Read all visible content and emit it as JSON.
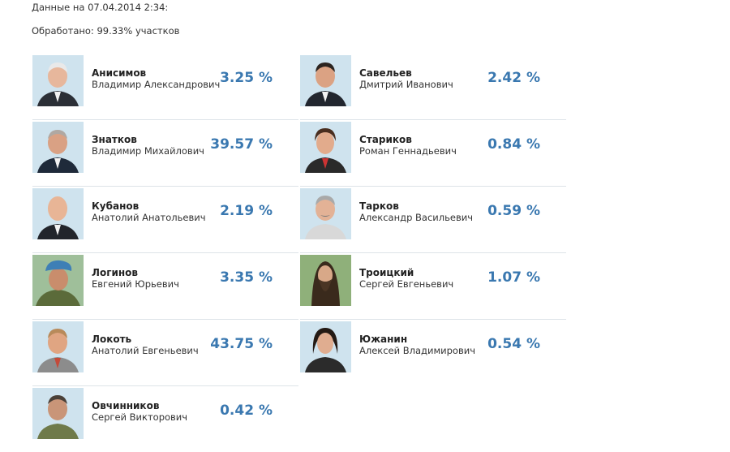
{
  "header": {
    "date_label": "Данные на 07.04.2014 2:34:",
    "processed_label": "Обработано: 99.33% участков"
  },
  "candidates_left": [
    {
      "surname": "Анисимов",
      "given": "Владимир Александрович",
      "percent": "3.25 %"
    },
    {
      "surname": "Знатков",
      "given": "Владимир Михайлович",
      "percent": "39.57 %"
    },
    {
      "surname": "Кубанов",
      "given": "Анатолий Анатольевич",
      "percent": "2.19 %"
    },
    {
      "surname": "Логинов",
      "given": "Евгений Юрьевич",
      "percent": "3.35 %"
    },
    {
      "surname": "Локоть",
      "given": "Анатолий Евгеньевич",
      "percent": "43.75 %"
    },
    {
      "surname": "Овчинников",
      "given": "Сергей Викторович",
      "percent": "0.42 %"
    }
  ],
  "candidates_right": [
    {
      "surname": "Савельев",
      "given": "Дмитрий Иванович",
      "percent": "2.42 %"
    },
    {
      "surname": "Стариков",
      "given": "Роман Геннадьевич",
      "percent": "0.84 %"
    },
    {
      "surname": "Тарков",
      "given": "Александр Васильевич",
      "percent": "0.59 %"
    },
    {
      "surname": "Троицкий",
      "given": "Сергей Евгеньевич",
      "percent": "1.07 %"
    },
    {
      "surname": "Южанин",
      "given": "Алексей Владимирович",
      "percent": "0.54 %"
    }
  ],
  "colors": {
    "percent": "#3a78b0",
    "photo_bg": "#cfe3ee",
    "divider": "#dde3e8"
  }
}
